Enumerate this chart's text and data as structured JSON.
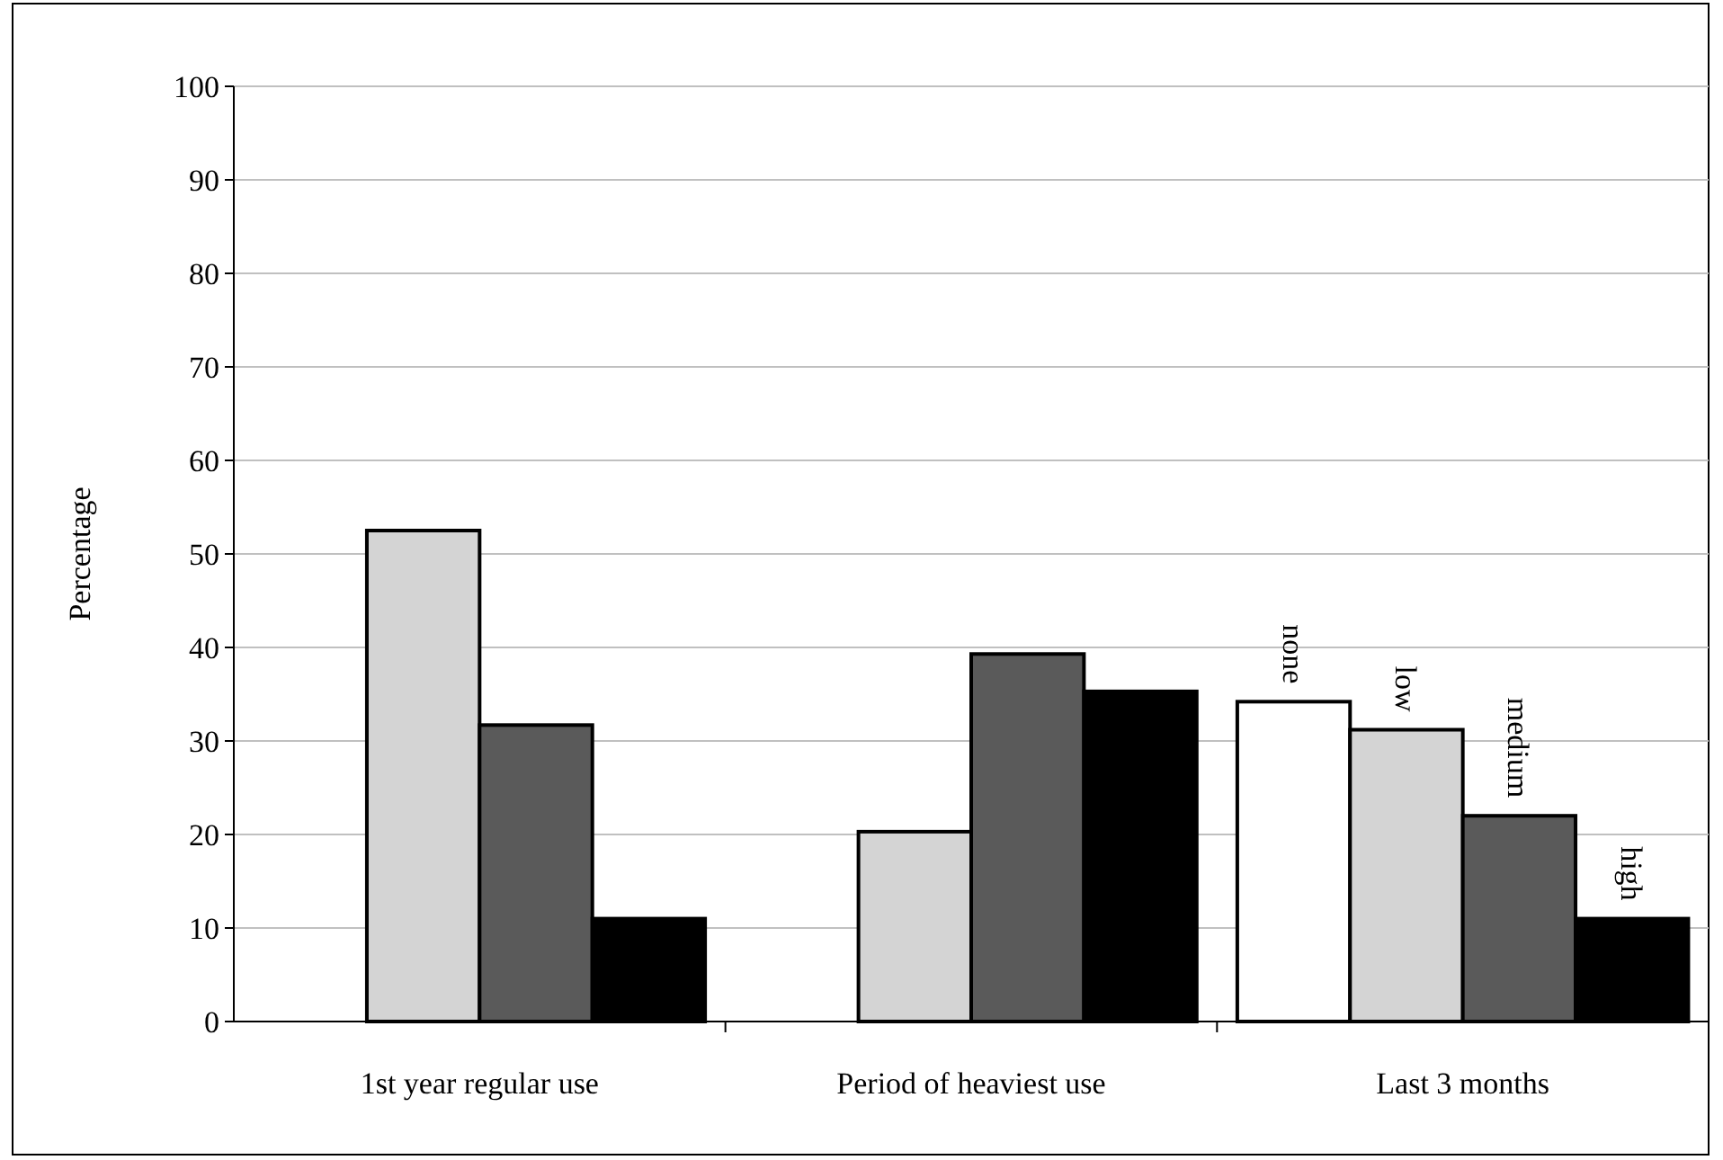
{
  "chart_data": {
    "type": "bar",
    "ylabel": "Percentage",
    "categories": [
      "1st year regular use",
      "Period of heaviest use",
      "Last 3 months"
    ],
    "series": [
      {
        "name": "none",
        "color": "#ffffff",
        "values": [
          0,
          0,
          34.2
        ]
      },
      {
        "name": "low",
        "color": "#d4d4d4",
        "values": [
          52.5,
          20.3,
          31.2
        ]
      },
      {
        "name": "medium",
        "color": "#5a5a5a",
        "values": [
          31.7,
          39.3,
          22
        ]
      },
      {
        "name": "high",
        "color": "#000000",
        "values": [
          11,
          35.3,
          11
        ]
      }
    ],
    "ylim": [
      0,
      100
    ],
    "yticks": [
      0,
      10,
      20,
      30,
      40,
      50,
      60,
      70,
      80,
      90,
      100
    ],
    "grid": "y",
    "legend": false
  }
}
